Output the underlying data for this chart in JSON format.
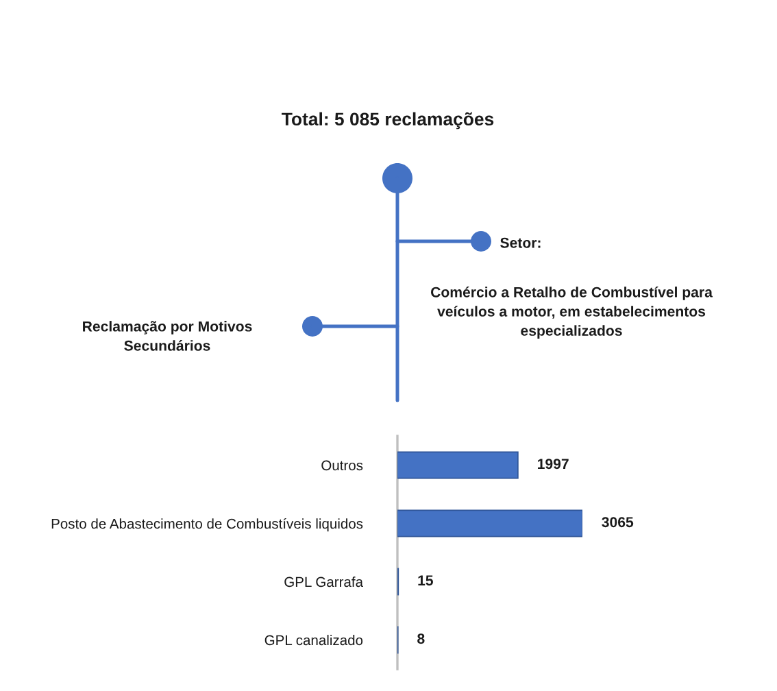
{
  "chart_data": {
    "type": "bar",
    "orientation": "horizontal",
    "title": "Total: 5 085 reclamações",
    "categories": [
      "Outros",
      "Posto de Abastecimento de Combustíveis liquidos",
      "GPL Garrafa",
      "GPL canalizado"
    ],
    "values": [
      1997,
      3065,
      15,
      8
    ],
    "color": "#4472c4",
    "data_labels": true,
    "tick_labels": "y",
    "annotations": [
      "Setor:",
      "Comércio a Retalho de Combustível para\nveículos a motor, em estabelecimentos\nespecializados",
      "Reclamação por Motivos\nSecundários"
    ]
  }
}
